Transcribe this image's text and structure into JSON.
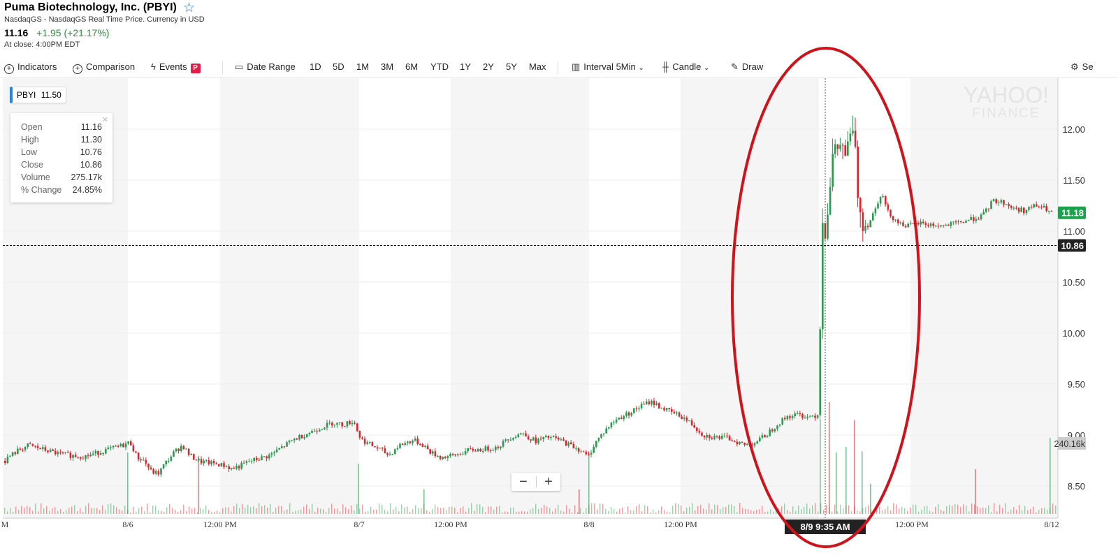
{
  "header": {
    "title": "Puma Biotechnology, Inc. (PBYI)",
    "subtitle": "NasdaqGS - NasdaqGS Real Time Price. Currency in USD",
    "price": "11.16",
    "change": "+1.95 (+21.17%)",
    "at_close": "At close: 4:00PM EDT"
  },
  "toolbar": {
    "indicators": "Indicators",
    "comparison": "Comparison",
    "events": "Events",
    "events_badge": "P",
    "date_range": "Date Range",
    "ranges": [
      "1D",
      "5D",
      "1M",
      "3M",
      "6M",
      "YTD",
      "1Y",
      "2Y",
      "5Y",
      "Max"
    ],
    "interval_label": "Interval",
    "interval_value": "5Min",
    "chart_type": "Candle",
    "draw": "Draw",
    "settings": "Se"
  },
  "legend": {
    "symbol": "PBYI",
    "value": "11.50"
  },
  "ohlc": [
    {
      "k": "Open",
      "v": "11.16"
    },
    {
      "k": "High",
      "v": "11.30"
    },
    {
      "k": "Low",
      "v": "10.76"
    },
    {
      "k": "Close",
      "v": "10.86"
    },
    {
      "k": "Volume",
      "v": "275.17k"
    },
    {
      "k": "% Change",
      "v": "24.85%"
    }
  ],
  "watermark": {
    "line1": "YAHOO!",
    "line2": "FINANCE"
  },
  "zoom": {
    "minus": "−",
    "plus": "+"
  },
  "crosshair_label": "8/9 9:35 AM",
  "colors": {
    "up": "#2a9a4f",
    "down": "#d9262e",
    "annotation": "#d0121b",
    "last_price": "#1aa34a"
  },
  "chart_data": {
    "type": "candlestick",
    "ylim": [
      8.25,
      12.4
    ],
    "y_ticks": [
      "12.00",
      "11.50",
      "11.00",
      "10.50",
      "10.00",
      "9.50",
      "9.00",
      "8.50"
    ],
    "x_labels": [
      "M",
      "8/6",
      "12:00 PM",
      "8/7",
      "12:00 PM",
      "8/8",
      "12:00 PM",
      "12:00 PM",
      "8/12"
    ],
    "last_price_tag": "11.18",
    "crosshair_price_tag": "10.86",
    "volume_tag": "240.16k",
    "price_path": [
      [
        0,
        8.7
      ],
      [
        10,
        8.78
      ],
      [
        25,
        8.85
      ],
      [
        40,
        8.9
      ],
      [
        60,
        8.86
      ],
      [
        80,
        8.82
      ],
      [
        100,
        8.8
      ],
      [
        120,
        8.79
      ],
      [
        140,
        8.83
      ],
      [
        160,
        8.87
      ],
      [
        175,
        8.9
      ],
      [
        185,
        8.93
      ],
      [
        195,
        8.78
      ],
      [
        205,
        8.75
      ],
      [
        215,
        8.64
      ],
      [
        225,
        8.62
      ],
      [
        235,
        8.72
      ],
      [
        248,
        8.83
      ],
      [
        260,
        8.9
      ],
      [
        270,
        8.8
      ],
      [
        285,
        8.74
      ],
      [
        305,
        8.72
      ],
      [
        320,
        8.7
      ],
      [
        330,
        8.67
      ],
      [
        340,
        8.69
      ],
      [
        355,
        8.74
      ],
      [
        370,
        8.77
      ],
      [
        385,
        8.8
      ],
      [
        400,
        8.87
      ],
      [
        420,
        8.96
      ],
      [
        440,
        9.02
      ],
      [
        460,
        9.08
      ],
      [
        475,
        9.12
      ],
      [
        490,
        9.1
      ],
      [
        505,
        9.14
      ],
      [
        515,
        8.96
      ],
      [
        530,
        8.9
      ],
      [
        545,
        8.85
      ],
      [
        555,
        8.8
      ],
      [
        570,
        8.9
      ],
      [
        590,
        8.95
      ],
      [
        605,
        8.9
      ],
      [
        615,
        8.83
      ],
      [
        630,
        8.78
      ],
      [
        650,
        8.8
      ],
      [
        670,
        8.85
      ],
      [
        690,
        8.86
      ],
      [
        710,
        8.88
      ],
      [
        730,
        8.98
      ],
      [
        745,
        9.02
      ],
      [
        765,
        8.94
      ],
      [
        785,
        8.98
      ],
      [
        800,
        8.95
      ],
      [
        815,
        8.9
      ],
      [
        830,
        8.85
      ],
      [
        840,
        8.78
      ],
      [
        850,
        8.92
      ],
      [
        865,
        9.05
      ],
      [
        880,
        9.15
      ],
      [
        900,
        9.22
      ],
      [
        915,
        9.28
      ],
      [
        930,
        9.33
      ],
      [
        945,
        9.27
      ],
      [
        960,
        9.22
      ],
      [
        975,
        9.18
      ],
      [
        990,
        9.1
      ],
      [
        1005,
        9.0
      ],
      [
        1020,
        8.98
      ],
      [
        1040,
        8.97
      ],
      [
        1055,
        8.93
      ],
      [
        1065,
        8.9
      ],
      [
        1080,
        8.93
      ],
      [
        1095,
        9.0
      ],
      [
        1110,
        9.1
      ],
      [
        1125,
        9.18
      ],
      [
        1140,
        9.2
      ],
      [
        1155,
        9.18
      ],
      [
        1170,
        9.2
      ],
      [
        1175,
        11.1
      ],
      [
        1180,
        11.0
      ],
      [
        1185,
        11.35
      ],
      [
        1190,
        11.72
      ],
      [
        1200,
        11.85
      ],
      [
        1210,
        11.75
      ],
      [
        1220,
        12.05
      ],
      [
        1226,
        11.4
      ],
      [
        1232,
        11.1
      ],
      [
        1240,
        11.05
      ],
      [
        1250,
        11.2
      ],
      [
        1260,
        11.38
      ],
      [
        1270,
        11.18
      ],
      [
        1285,
        11.08
      ],
      [
        1300,
        11.05
      ],
      [
        1315,
        11.08
      ],
      [
        1330,
        11.06
      ],
      [
        1350,
        11.05
      ],
      [
        1370,
        11.08
      ],
      [
        1390,
        11.12
      ],
      [
        1405,
        11.15
      ],
      [
        1420,
        11.3
      ],
      [
        1435,
        11.28
      ],
      [
        1450,
        11.22
      ],
      [
        1465,
        11.2
      ],
      [
        1480,
        11.25
      ],
      [
        1495,
        11.22
      ],
      [
        1502,
        11.18
      ]
    ],
    "big_volume_bars": [
      [
        182,
        0.55
      ],
      [
        283,
        0.52
      ],
      [
        512,
        0.45
      ],
      [
        606,
        0.22
      ],
      [
        828,
        0.22
      ],
      [
        842,
        0.55
      ],
      [
        1173,
        0.85
      ],
      [
        1186,
        1.0
      ],
      [
        1196,
        0.55
      ],
      [
        1210,
        0.6
      ],
      [
        1222,
        0.84
      ],
      [
        1233,
        0.56
      ],
      [
        1245,
        0.27
      ],
      [
        1395,
        0.4
      ],
      [
        1502,
        0.68
      ]
    ],
    "volume_max_label_price": "240.16k"
  }
}
